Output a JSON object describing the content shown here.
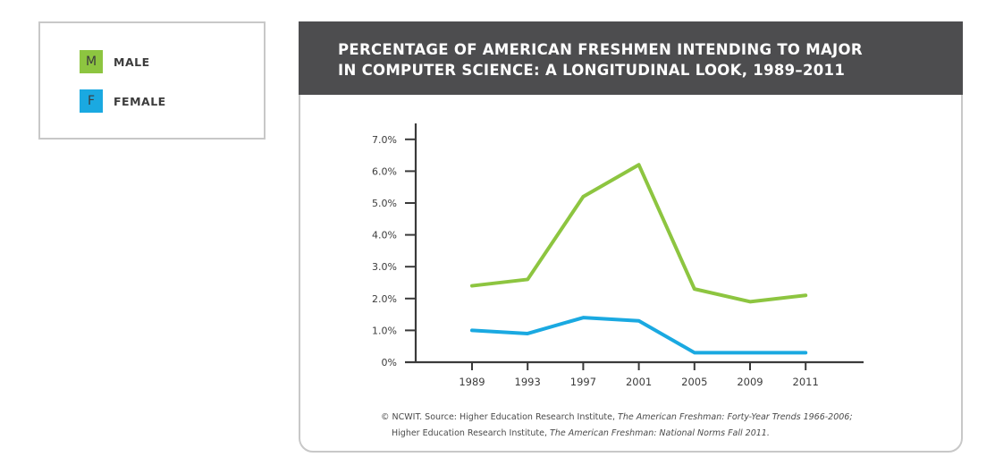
{
  "legend": {
    "items": [
      {
        "letter": "M",
        "label": "MALE",
        "color": "#8dc540"
      },
      {
        "letter": "F",
        "label": "FEMALE",
        "color": "#1aa9e1"
      }
    ]
  },
  "chart_data": {
    "type": "line",
    "title": "PERCENTAGE OF AMERICAN FRESHMEN INTENDING TO MAJOR\nIN COMPUTER SCIENCE: A LONGITUDINAL LOOK, 1989–2011",
    "categories": [
      "1989",
      "1993",
      "1997",
      "2001",
      "2005",
      "2009",
      "2011"
    ],
    "series": [
      {
        "name": "MALE",
        "color": "#8dc540",
        "values": [
          2.4,
          2.6,
          5.2,
          6.2,
          2.3,
          1.9,
          2.1
        ]
      },
      {
        "name": "FEMALE",
        "color": "#1aa9e1",
        "values": [
          1.0,
          0.9,
          1.4,
          1.3,
          0.3,
          0.3,
          0.3
        ]
      }
    ],
    "y_ticks": [
      "0%",
      "1.0%",
      "2.0%",
      "3.0%",
      "4.0%",
      "5.0%",
      "6.0%",
      "7.0%"
    ],
    "ylim": [
      0,
      7
    ],
    "xlabel": "",
    "ylabel": "",
    "grid": false,
    "legend_position": "outside-top-left"
  },
  "footnote": {
    "line1_prefix": "© NCWIT. Source: Higher Education Research Institute, ",
    "line1_italic": "The American Freshman: Forty-Year Trends 1966-2006;",
    "line2_prefix": "Higher Education Research Institute, ",
    "line2_italic": "The American Freshman: National Norms Fall 2011."
  }
}
